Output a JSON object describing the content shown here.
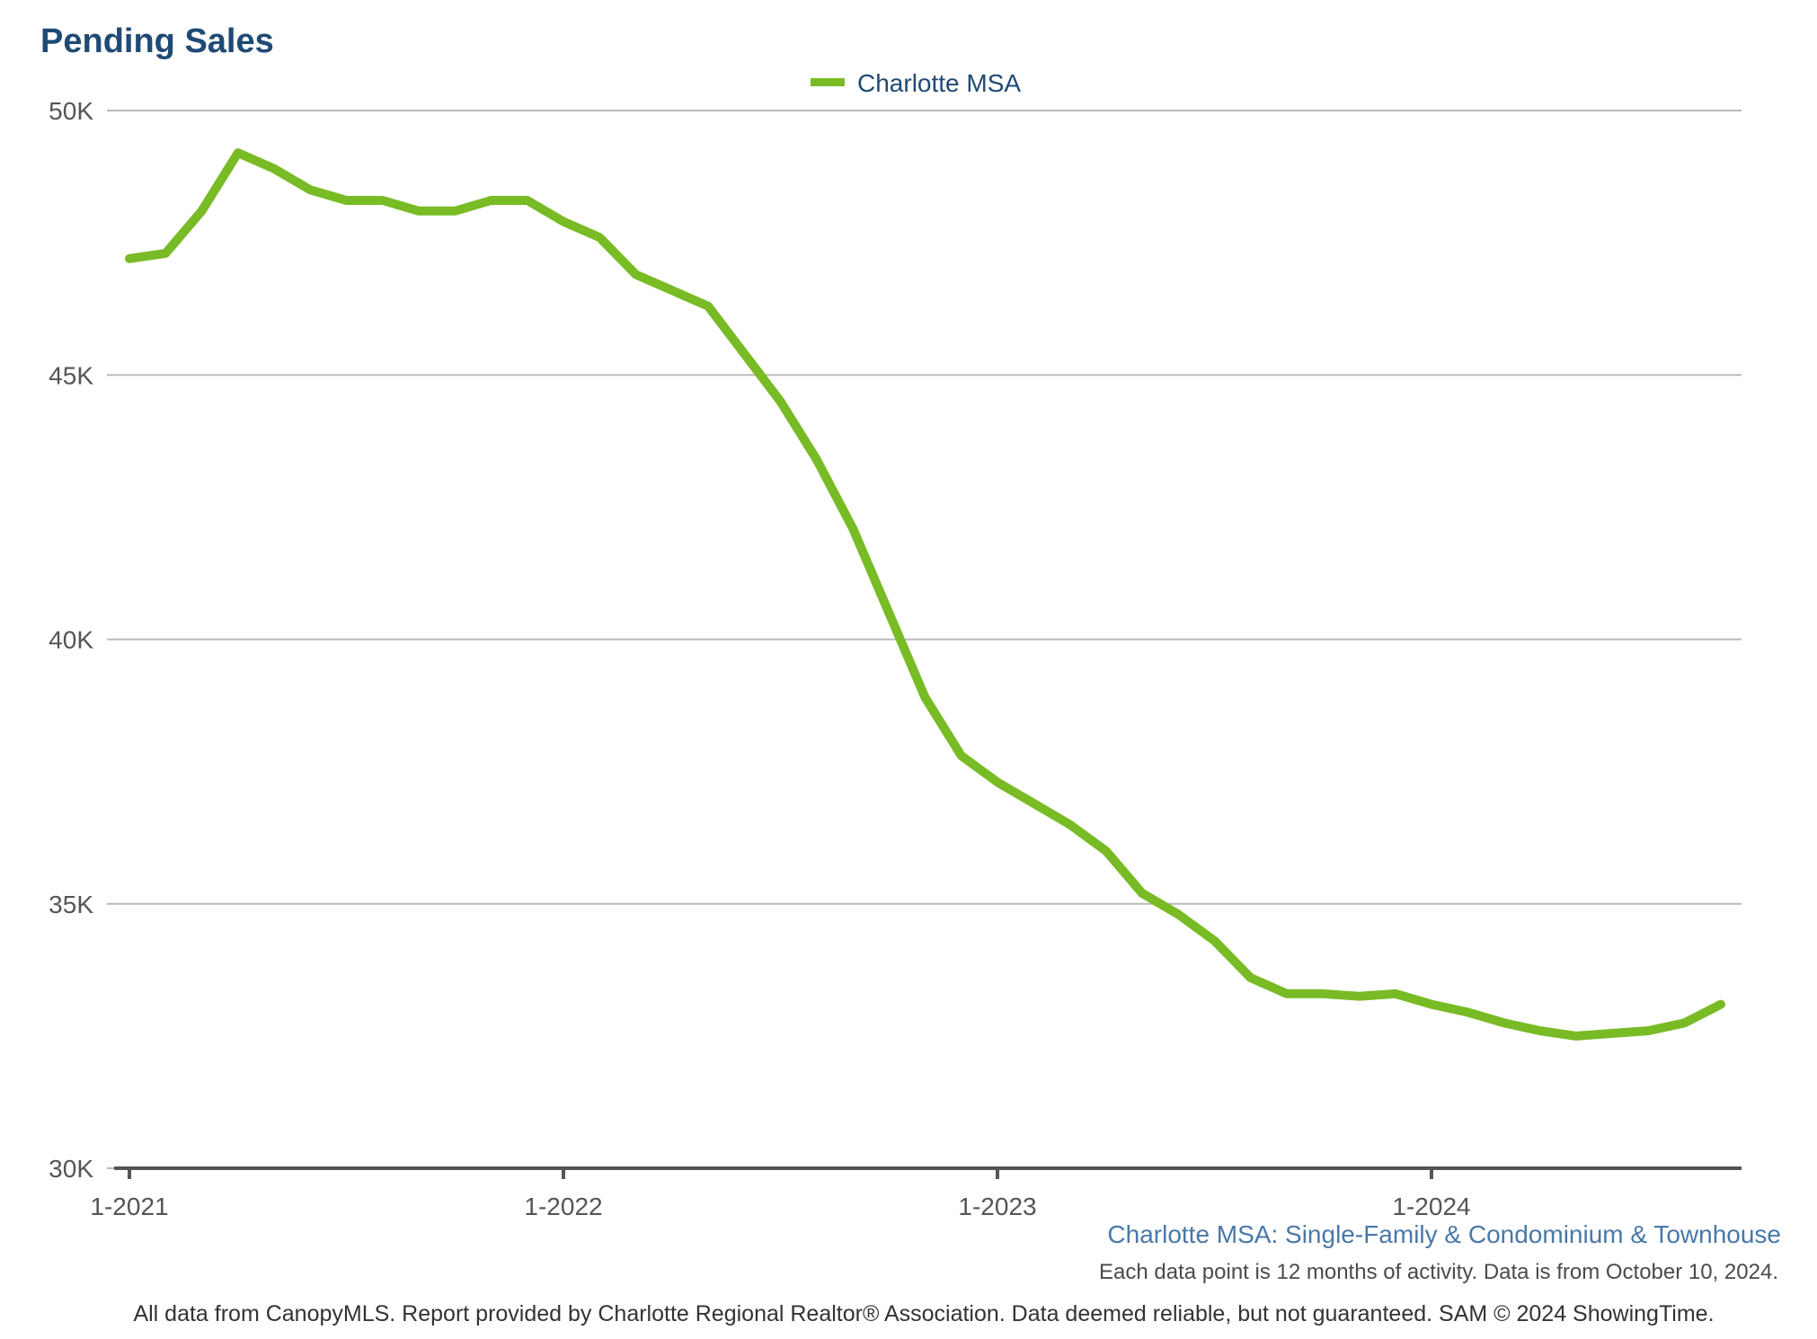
{
  "chart_data": {
    "type": "line",
    "title": "Pending Sales",
    "legend": {
      "position": "top-center",
      "entries": [
        "Charlotte MSA"
      ]
    },
    "colors": {
      "series": "#78bb25",
      "title": "#1f4a74",
      "subtitle": "#4a78a8",
      "grid": "#b9b9b9",
      "axis": "#555555"
    },
    "grid": true,
    "xlim": [
      0,
      44
    ],
    "ylim": [
      30000,
      50000
    ],
    "y_ticks": [
      {
        "value": 50000,
        "label": "50K"
      },
      {
        "value": 45000,
        "label": "45K"
      },
      {
        "value": 40000,
        "label": "40K"
      },
      {
        "value": 35000,
        "label": "35K"
      },
      {
        "value": 30000,
        "label": "30K"
      }
    ],
    "x_ticks": [
      {
        "index": 0,
        "label": "1-2021"
      },
      {
        "index": 12,
        "label": "1-2022"
      },
      {
        "index": 24,
        "label": "1-2023"
      },
      {
        "index": 36,
        "label": "1-2024"
      }
    ],
    "series": [
      {
        "name": "Charlotte MSA",
        "values": [
          47200,
          47300,
          48100,
          49200,
          48900,
          48500,
          48300,
          48300,
          48100,
          48100,
          48300,
          48300,
          47900,
          47600,
          46900,
          46600,
          46300,
          45400,
          44500,
          43400,
          42100,
          40500,
          38900,
          37800,
          37300,
          36900,
          36500,
          36000,
          35200,
          34800,
          34300,
          33600,
          33300,
          33300,
          33250,
          33300,
          33100,
          32950,
          32750,
          32600,
          32500,
          32550,
          32600,
          32750,
          33100
        ]
      }
    ]
  },
  "subtitle": "Charlotte MSA: Single-Family & Condominium & Townhouse",
  "note": "Each data point is 12 months of activity. Data is from October 10, 2024.",
  "footer": "All data from CanopyMLS. Report provided by Charlotte Regional Realtor® Association. Data deemed reliable, but not guaranteed. SAM © 2024 ShowingTime."
}
